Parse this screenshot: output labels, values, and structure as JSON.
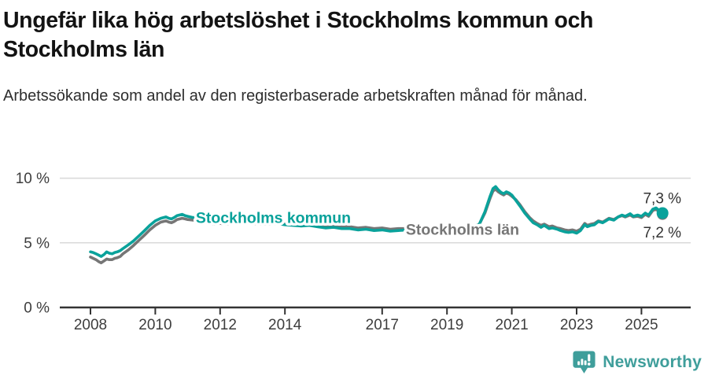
{
  "header": {
    "title": "Ungefär lika hög arbetslöshet i Stockholms kommun och Stockholms län",
    "subtitle": "Arbetssökande som andel av den registerbaserade arbetskraften månad för månad."
  },
  "footer": {
    "brand": "Newsworthy",
    "brand_color": "#3f9e9b"
  },
  "chart_data": {
    "type": "line",
    "title": "Ungefär lika hög arbetslöshet i Stockholms kommun och Stockholms län",
    "ylabel": "",
    "xlabel": "",
    "unit": "%",
    "grid": "horizontal",
    "legend_position": "inline-labels",
    "x_axis": {
      "tick_years": [
        2008,
        2010,
        2012,
        2014,
        2017,
        2019,
        2021,
        2023,
        2025
      ],
      "tick_labels": [
        "2008",
        "2010",
        "2012",
        "2014",
        "2017",
        "2019",
        "2021",
        "2023",
        "2025"
      ],
      "range": [
        2007.05,
        2026.5
      ]
    },
    "y_axis": {
      "ticks": [
        0,
        5,
        10
      ],
      "tick_labels": [
        "0 %",
        "5 %",
        "10 %"
      ],
      "range": [
        0,
        10
      ],
      "gridlines": [
        5,
        10
      ]
    },
    "colors": {
      "kommun": "#0aa29b",
      "lan": "#767676",
      "axis_text": "#3d3d3d",
      "gridline": "#d9d9d9",
      "axis_line": "#333333",
      "value_label": "#333333"
    },
    "series": [
      {
        "name": "Stockholms län",
        "slug": "stockholms-lan",
        "color": "#767676",
        "end_label": "7,2 %",
        "end_value": 7.2,
        "points": [
          [
            2008.0,
            3.9
          ],
          [
            2008.08,
            3.8
          ],
          [
            2008.17,
            3.7
          ],
          [
            2008.25,
            3.55
          ],
          [
            2008.33,
            3.45
          ],
          [
            2008.42,
            3.6
          ],
          [
            2008.5,
            3.75
          ],
          [
            2008.58,
            3.7
          ],
          [
            2008.67,
            3.7
          ],
          [
            2008.75,
            3.8
          ],
          [
            2008.83,
            3.85
          ],
          [
            2008.92,
            3.95
          ],
          [
            2009.0,
            4.15
          ],
          [
            2009.17,
            4.45
          ],
          [
            2009.33,
            4.8
          ],
          [
            2009.5,
            5.2
          ],
          [
            2009.67,
            5.6
          ],
          [
            2009.83,
            6.0
          ],
          [
            2010.0,
            6.35
          ],
          [
            2010.17,
            6.6
          ],
          [
            2010.33,
            6.7
          ],
          [
            2010.42,
            6.6
          ],
          [
            2010.5,
            6.55
          ],
          [
            2010.58,
            6.65
          ],
          [
            2010.67,
            6.8
          ],
          [
            2010.83,
            6.9
          ],
          [
            2010.92,
            6.85
          ],
          [
            2011.0,
            6.8
          ],
          [
            2011.17,
            6.75
          ],
          [
            2011.33,
            6.85
          ],
          [
            2011.5,
            6.75
          ],
          [
            2011.67,
            6.55
          ],
          [
            2011.83,
            6.45
          ],
          [
            2012.0,
            6.5
          ],
          [
            2012.17,
            6.45
          ],
          [
            2012.33,
            6.5
          ],
          [
            2012.5,
            6.45
          ],
          [
            2012.67,
            6.5
          ],
          [
            2012.83,
            6.55
          ],
          [
            2013.0,
            6.5
          ],
          [
            2013.25,
            6.45
          ],
          [
            2013.5,
            6.45
          ],
          [
            2013.75,
            6.5
          ],
          [
            2014.0,
            6.45
          ],
          [
            2014.25,
            6.4
          ],
          [
            2014.5,
            6.4
          ],
          [
            2014.75,
            6.45
          ],
          [
            2015.0,
            6.35
          ],
          [
            2015.25,
            6.3
          ],
          [
            2015.5,
            6.35
          ],
          [
            2015.75,
            6.25
          ],
          [
            2016.0,
            6.25
          ],
          [
            2016.25,
            6.15
          ],
          [
            2016.5,
            6.2
          ],
          [
            2016.75,
            6.1
          ],
          [
            2017.0,
            6.15
          ],
          [
            2017.25,
            6.05
          ],
          [
            2017.5,
            6.1
          ],
          [
            2017.75,
            6.1
          ],
          [
            2018.0,
            6.1
          ],
          [
            2018.25,
            6.05
          ],
          [
            2018.5,
            6.0
          ],
          [
            2018.75,
            6.05
          ],
          [
            2019.0,
            6.05
          ],
          [
            2019.25,
            6.1
          ],
          [
            2019.5,
            6.1
          ],
          [
            2019.75,
            6.2
          ],
          [
            2020.0,
            6.45
          ],
          [
            2020.17,
            7.3
          ],
          [
            2020.33,
            8.45
          ],
          [
            2020.42,
            9.0
          ],
          [
            2020.5,
            9.15
          ],
          [
            2020.58,
            8.95
          ],
          [
            2020.67,
            8.8
          ],
          [
            2020.75,
            8.7
          ],
          [
            2020.83,
            8.85
          ],
          [
            2020.92,
            8.75
          ],
          [
            2021.0,
            8.6
          ],
          [
            2021.12,
            8.35
          ],
          [
            2021.25,
            7.95
          ],
          [
            2021.4,
            7.4
          ],
          [
            2021.55,
            6.95
          ],
          [
            2021.66,
            6.7
          ],
          [
            2021.78,
            6.5
          ],
          [
            2021.9,
            6.35
          ],
          [
            2022.0,
            6.45
          ],
          [
            2022.15,
            6.25
          ],
          [
            2022.25,
            6.3
          ],
          [
            2022.4,
            6.15
          ],
          [
            2022.5,
            6.1
          ],
          [
            2022.63,
            6.0
          ],
          [
            2022.75,
            5.95
          ],
          [
            2022.87,
            6.0
          ],
          [
            2023.0,
            5.9
          ],
          [
            2023.12,
            6.05
          ],
          [
            2023.25,
            6.5
          ],
          [
            2023.33,
            6.35
          ],
          [
            2023.45,
            6.45
          ],
          [
            2023.55,
            6.5
          ],
          [
            2023.67,
            6.7
          ],
          [
            2023.8,
            6.6
          ],
          [
            2023.9,
            6.75
          ],
          [
            2024.0,
            6.9
          ],
          [
            2024.15,
            6.8
          ],
          [
            2024.28,
            7.0
          ],
          [
            2024.4,
            7.1
          ],
          [
            2024.5,
            7.0
          ],
          [
            2024.65,
            7.15
          ],
          [
            2024.75,
            7.0
          ],
          [
            2024.88,
            7.05
          ],
          [
            2025.0,
            6.95
          ],
          [
            2025.12,
            7.2
          ],
          [
            2025.22,
            7.05
          ],
          [
            2025.35,
            7.5
          ],
          [
            2025.45,
            7.6
          ],
          [
            2025.55,
            7.4
          ],
          [
            2025.65,
            7.2
          ]
        ]
      },
      {
        "name": "Stockholms kommun",
        "slug": "stockholms-kommun",
        "color": "#0aa29b",
        "end_label": "7,3 %",
        "end_value": 7.3,
        "points": [
          [
            2008.0,
            4.3
          ],
          [
            2008.08,
            4.25
          ],
          [
            2008.17,
            4.15
          ],
          [
            2008.25,
            4.05
          ],
          [
            2008.33,
            3.95
          ],
          [
            2008.42,
            4.1
          ],
          [
            2008.5,
            4.3
          ],
          [
            2008.58,
            4.2
          ],
          [
            2008.67,
            4.15
          ],
          [
            2008.75,
            4.25
          ],
          [
            2008.83,
            4.3
          ],
          [
            2008.92,
            4.4
          ],
          [
            2009.0,
            4.55
          ],
          [
            2009.17,
            4.85
          ],
          [
            2009.33,
            5.15
          ],
          [
            2009.5,
            5.55
          ],
          [
            2009.67,
            5.95
          ],
          [
            2009.83,
            6.35
          ],
          [
            2010.0,
            6.7
          ],
          [
            2010.17,
            6.9
          ],
          [
            2010.33,
            7.0
          ],
          [
            2010.42,
            6.9
          ],
          [
            2010.5,
            6.85
          ],
          [
            2010.58,
            6.95
          ],
          [
            2010.67,
            7.1
          ],
          [
            2010.83,
            7.2
          ],
          [
            2010.92,
            7.1
          ],
          [
            2011.0,
            7.05
          ],
          [
            2011.17,
            6.95
          ],
          [
            2011.33,
            7.05
          ],
          [
            2011.5,
            6.9
          ],
          [
            2011.67,
            6.7
          ],
          [
            2011.83,
            6.6
          ],
          [
            2012.0,
            6.65
          ],
          [
            2012.17,
            6.55
          ],
          [
            2012.33,
            6.6
          ],
          [
            2012.5,
            6.5
          ],
          [
            2012.67,
            6.55
          ],
          [
            2012.83,
            6.6
          ],
          [
            2013.0,
            6.55
          ],
          [
            2013.25,
            6.5
          ],
          [
            2013.5,
            6.45
          ],
          [
            2013.75,
            6.5
          ],
          [
            2014.0,
            6.4
          ],
          [
            2014.25,
            6.35
          ],
          [
            2014.5,
            6.3
          ],
          [
            2014.75,
            6.35
          ],
          [
            2015.0,
            6.25
          ],
          [
            2015.25,
            6.15
          ],
          [
            2015.5,
            6.2
          ],
          [
            2015.75,
            6.1
          ],
          [
            2016.0,
            6.1
          ],
          [
            2016.25,
            6.0
          ],
          [
            2016.5,
            6.05
          ],
          [
            2016.75,
            5.95
          ],
          [
            2017.0,
            6.0
          ],
          [
            2017.25,
            5.9
          ],
          [
            2017.5,
            5.95
          ],
          [
            2017.75,
            6.0
          ],
          [
            2018.0,
            6.0
          ],
          [
            2018.25,
            5.95
          ],
          [
            2018.5,
            5.9
          ],
          [
            2018.75,
            5.95
          ],
          [
            2019.0,
            5.95
          ],
          [
            2019.25,
            6.0
          ],
          [
            2019.5,
            6.05
          ],
          [
            2019.75,
            6.15
          ],
          [
            2020.0,
            6.45
          ],
          [
            2020.17,
            7.4
          ],
          [
            2020.33,
            8.6
          ],
          [
            2020.42,
            9.2
          ],
          [
            2020.5,
            9.35
          ],
          [
            2020.58,
            9.1
          ],
          [
            2020.67,
            8.9
          ],
          [
            2020.75,
            8.8
          ],
          [
            2020.83,
            8.95
          ],
          [
            2020.92,
            8.85
          ],
          [
            2021.0,
            8.7
          ],
          [
            2021.12,
            8.3
          ],
          [
            2021.25,
            7.85
          ],
          [
            2021.4,
            7.3
          ],
          [
            2021.55,
            6.85
          ],
          [
            2021.66,
            6.55
          ],
          [
            2021.78,
            6.4
          ],
          [
            2021.9,
            6.2
          ],
          [
            2022.0,
            6.35
          ],
          [
            2022.15,
            6.1
          ],
          [
            2022.25,
            6.15
          ],
          [
            2022.4,
            6.05
          ],
          [
            2022.5,
            5.95
          ],
          [
            2022.63,
            5.85
          ],
          [
            2022.75,
            5.8
          ],
          [
            2022.87,
            5.85
          ],
          [
            2023.0,
            5.75
          ],
          [
            2023.12,
            5.95
          ],
          [
            2023.25,
            6.4
          ],
          [
            2023.33,
            6.25
          ],
          [
            2023.45,
            6.35
          ],
          [
            2023.55,
            6.4
          ],
          [
            2023.67,
            6.65
          ],
          [
            2023.8,
            6.55
          ],
          [
            2023.9,
            6.7
          ],
          [
            2024.0,
            6.85
          ],
          [
            2024.15,
            6.75
          ],
          [
            2024.28,
            7.0
          ],
          [
            2024.4,
            7.15
          ],
          [
            2024.5,
            7.05
          ],
          [
            2024.65,
            7.25
          ],
          [
            2024.75,
            7.05
          ],
          [
            2024.88,
            7.15
          ],
          [
            2025.0,
            7.05
          ],
          [
            2025.12,
            7.3
          ],
          [
            2025.22,
            7.15
          ],
          [
            2025.35,
            7.6
          ],
          [
            2025.45,
            7.7
          ],
          [
            2025.55,
            7.5
          ],
          [
            2025.65,
            7.3
          ]
        ]
      }
    ],
    "annotations": [
      {
        "text": "Stockholms kommun",
        "slug": "stockholms-kommun",
        "color": "#0aa29b",
        "x": 2011.25,
        "baseline_value": 6.55,
        "anchor": "start",
        "bold": true
      },
      {
        "text": "Stockholms län",
        "slug": "stockholms-lan",
        "color": "#767676",
        "x": 2017.73,
        "baseline_value": 5.63,
        "anchor": "start",
        "bold": true
      }
    ],
    "end_value_labels": [
      {
        "text": "7,3 %",
        "slug": "kommun-current-value",
        "x": 2026.23,
        "baseline_value": 8.05,
        "anchor": "end"
      },
      {
        "text": "7,2 %",
        "slug": "lan-current-value",
        "x": 2026.23,
        "baseline_value": 5.4,
        "anchor": "end"
      }
    ]
  }
}
